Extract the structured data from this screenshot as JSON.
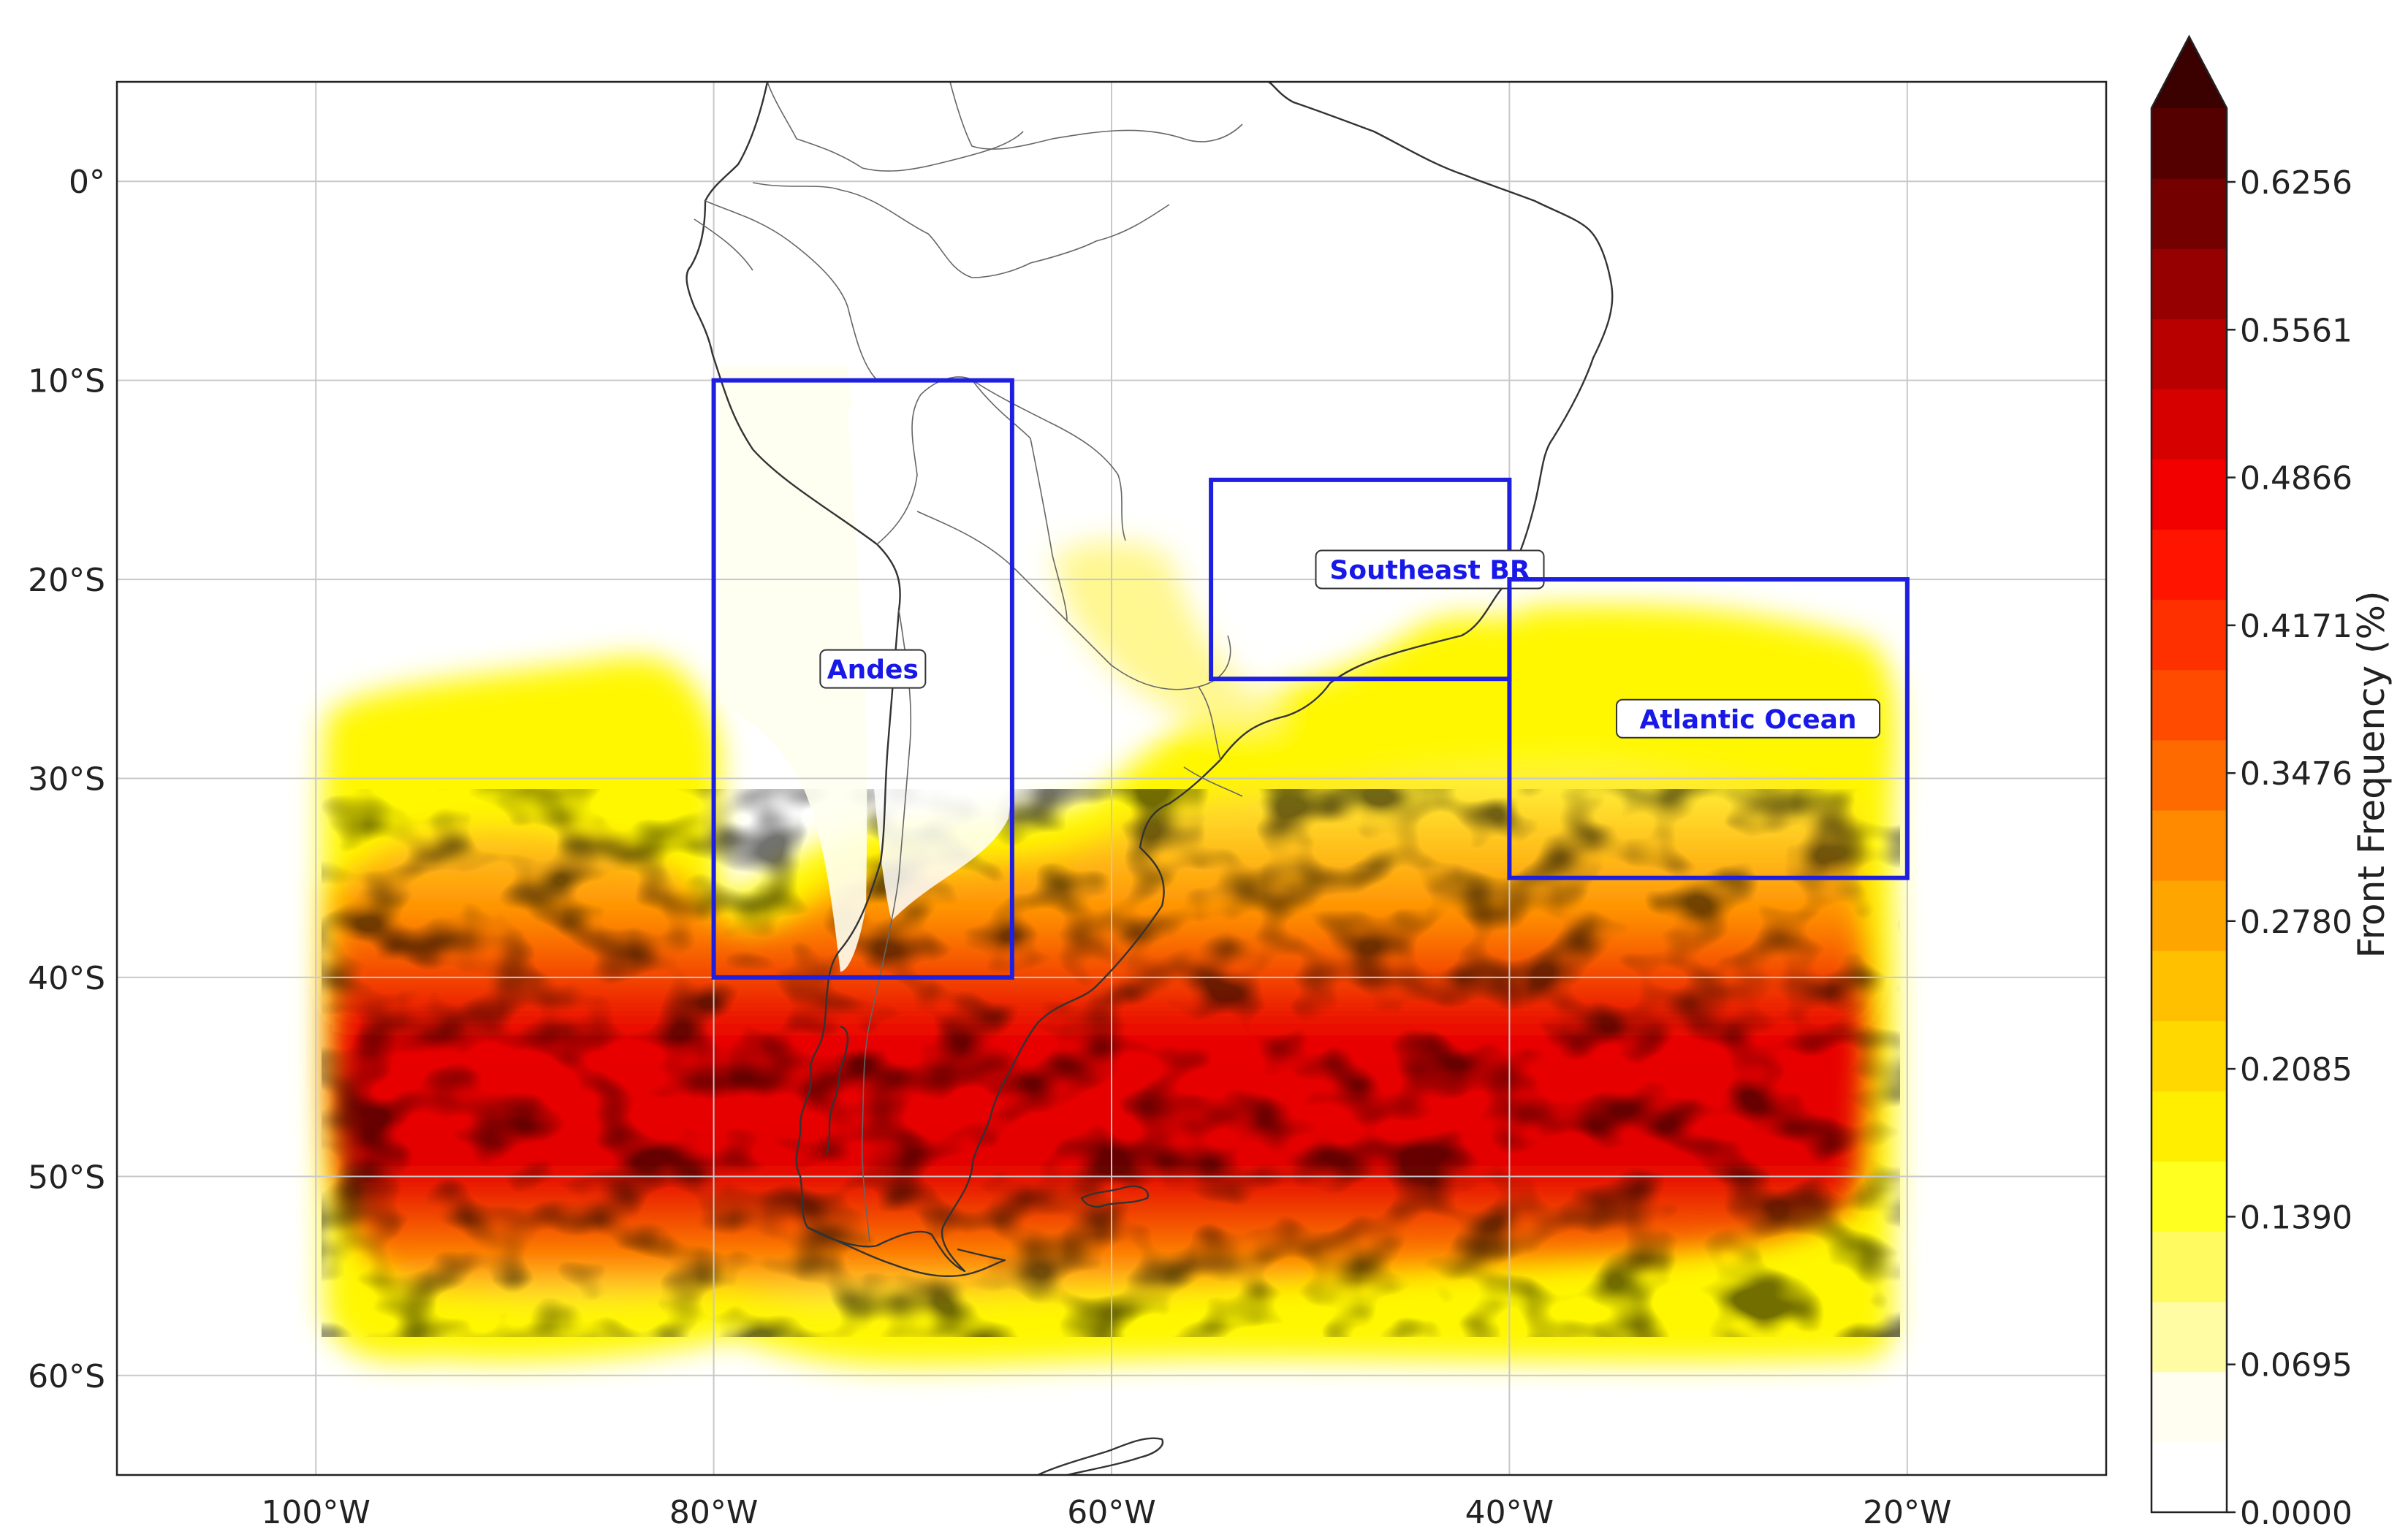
{
  "map": {
    "lon_range": [
      -110,
      -10
    ],
    "lat_range": [
      -65,
      5
    ],
    "grid": true,
    "lon_ticks": [
      {
        "value": -100,
        "label": "100°W"
      },
      {
        "value": -80,
        "label": "80°W"
      },
      {
        "value": -60,
        "label": "60°W"
      },
      {
        "value": -40,
        "label": "40°W"
      },
      {
        "value": -20,
        "label": "20°W"
      }
    ],
    "lat_ticks": [
      {
        "value": 0,
        "label": "0°"
      },
      {
        "value": -10,
        "label": "10°S"
      },
      {
        "value": -20,
        "label": "20°S"
      },
      {
        "value": -30,
        "label": "30°S"
      },
      {
        "value": -40,
        "label": "40°S"
      },
      {
        "value": -50,
        "label": "50°S"
      },
      {
        "value": -60,
        "label": "60°S"
      }
    ],
    "regions": [
      {
        "name": "Andes",
        "lon": [
          -80,
          -65
        ],
        "lat": [
          -40,
          -10
        ],
        "label_at": [
          -72,
          -24.5
        ]
      },
      {
        "name": "Southeast BR",
        "lon": [
          -55,
          -40
        ],
        "lat": [
          -25,
          -15
        ],
        "label_at": [
          -44,
          -19.5
        ]
      },
      {
        "name": "Atlantic Ocean",
        "lon": [
          -40,
          -20
        ],
        "lat": [
          -35,
          -20
        ],
        "label_at": [
          -28,
          -27
        ]
      }
    ],
    "box_color": "#1f1fe0",
    "label_color": "#1818e8"
  },
  "colorbar": {
    "title": "Front Frequency (%)",
    "min": 0,
    "max": 0.6603,
    "extend": "max",
    "tick_labels": [
      "0.0000",
      "0.0695",
      "0.1390",
      "0.2085",
      "0.2780",
      "0.3476",
      "0.4171",
      "0.4866",
      "0.5561",
      "0.6256"
    ],
    "colors": [
      "#ffffff",
      "#fffef0",
      "#fffca4",
      "#fffa60",
      "#ffff20",
      "#ffee00",
      "#ffd800",
      "#ffc000",
      "#ffa500",
      "#ff8a00",
      "#ff6a00",
      "#ff4b00",
      "#ff3000",
      "#ff1400",
      "#f20000",
      "#d60000",
      "#b80000",
      "#960000",
      "#740000",
      "#550000"
    ],
    "extend_color": "#3b0000"
  }
}
